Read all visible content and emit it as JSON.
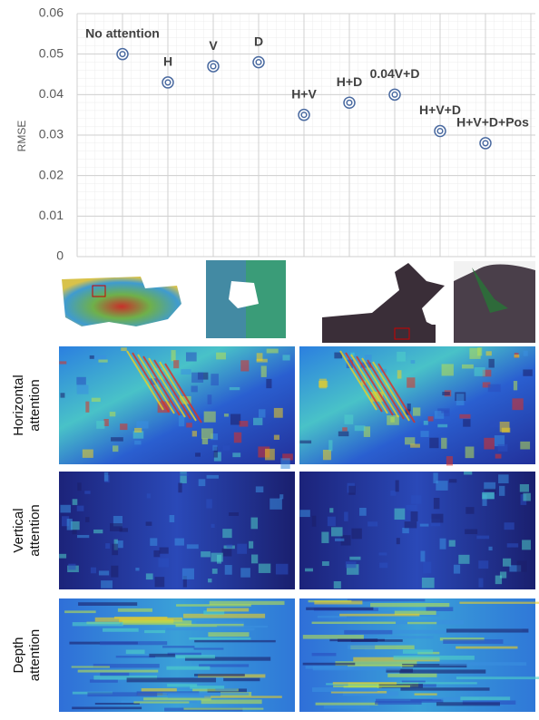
{
  "chart_data": {
    "type": "scatter",
    "ylabel": "RMSE",
    "categories": [
      "No attention",
      "H",
      "V",
      "D",
      "H+V",
      "H+D",
      "0.04V+D",
      "H+V+D",
      "H+V+D+Pos"
    ],
    "values": [
      0.05,
      0.043,
      0.047,
      0.048,
      0.035,
      0.038,
      0.04,
      0.031,
      0.028
    ],
    "color": "#4a6aa0",
    "ylim": [
      0,
      0.06
    ],
    "yticks": [
      0,
      0.01,
      0.02,
      0.03,
      0.04,
      0.05,
      0.06
    ],
    "grid": true
  },
  "panels": {
    "rows": [
      "Horizontal attention",
      "Vertical attention",
      "Depth attention"
    ]
  }
}
